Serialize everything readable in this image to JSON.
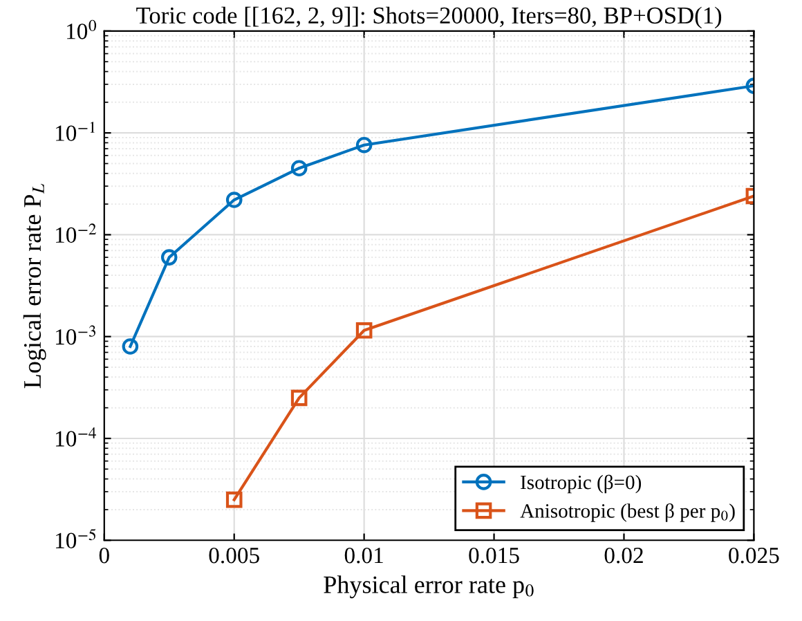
{
  "chart_data": {
    "type": "line",
    "title": "Toric code [[162, 2, 9]]: Shots=20000, Iters=80, BP+OSD(1)",
    "xlabel": "Physical error rate p$_{0}$",
    "ylabel": "Logical error rate P$_{L}$",
    "x": [
      0.001,
      0.0025,
      0.005,
      0.0075,
      0.01,
      0.025
    ],
    "series": [
      {
        "name": "Isotropic (β=0)",
        "color": "#0072bd",
        "marker": "circle",
        "values": [
          0.0008,
          0.006,
          0.022,
          0.045,
          0.076,
          0.29
        ]
      },
      {
        "name": "Anisotropic (best β per p$_{0}$)",
        "color": "#d95319",
        "marker": "square",
        "values": [
          null,
          null,
          2.5e-05,
          0.00025,
          0.00115,
          0.024
        ]
      }
    ],
    "log": "y",
    "xlim": [
      0,
      0.025
    ],
    "xticks": [
      0,
      0.005,
      0.01,
      0.015,
      0.02,
      0.025
    ],
    "ylim": [
      1e-05,
      1
    ],
    "yticks": [
      {
        "value": 1e-05,
        "label": "10$^{−5}$"
      },
      {
        "value": 0.0001,
        "label": "10$^{−4}$"
      },
      {
        "value": 0.001,
        "label": "10$^{−3}$"
      },
      {
        "value": 0.01,
        "label": "10$^{−2}$"
      },
      {
        "value": 0.1,
        "label": "10$^{−1}$"
      },
      {
        "value": 1,
        "label": "10$^{0}$"
      }
    ],
    "grid": true,
    "legend": "bottom right",
    "line_style": "solid"
  }
}
